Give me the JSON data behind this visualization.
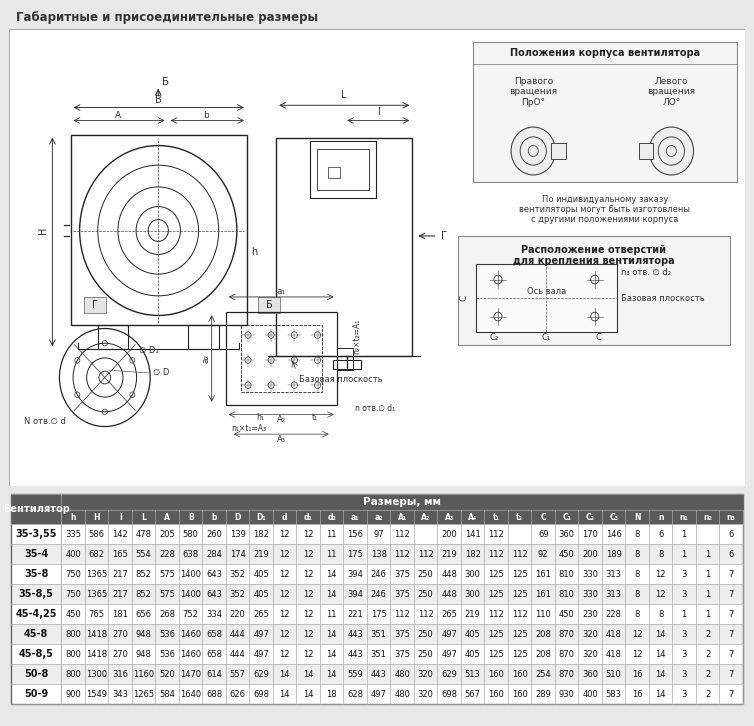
{
  "title": "Габаритные и присоединительные размеры",
  "title_color": "#333333",
  "background_color": "#e8e8e8",
  "drawing_bg": "#ffffff",
  "table_header_bg": "#5a5a5a",
  "table_header_color": "#ffffff",
  "table_row_bg1": "#ffffff",
  "table_row_bg2": "#eeeeee",
  "table_border_color": "#aaaaaa",
  "col_headers": [
    "Вентилятор",
    "h",
    "H",
    "I",
    "L",
    "A",
    "B",
    "b",
    "D",
    "D₁",
    "d",
    "d₁",
    "d₂",
    "a₁",
    "a₂",
    "A₁",
    "A₂",
    "A₃",
    "A₄",
    "t₁",
    "t₂",
    "C",
    "C₁",
    "C₂",
    "C₃",
    "N",
    "n",
    "n₁",
    "n₂",
    "n₃"
  ],
  "rows": [
    [
      "35-3,55",
      "335",
      "586",
      "142",
      "478",
      "205",
      "580",
      "260",
      "139",
      "182",
      "12",
      "12",
      "11",
      "156",
      "97",
      "112",
      "",
      "200",
      "141",
      "112",
      "",
      "69",
      "360",
      "170",
      "146",
      "8",
      "6",
      "1",
      "",
      "6"
    ],
    [
      "35-4",
      "400",
      "682",
      "165",
      "554",
      "228",
      "638",
      "284",
      "174",
      "219",
      "12",
      "12",
      "11",
      "175",
      "138",
      "112",
      "112",
      "219",
      "182",
      "112",
      "112",
      "92",
      "450",
      "200",
      "189",
      "8",
      "8",
      "1",
      "1",
      "6"
    ],
    [
      "35-8",
      "750",
      "1365",
      "217",
      "852",
      "575",
      "1400",
      "643",
      "352",
      "405",
      "12",
      "12",
      "14",
      "394",
      "246",
      "375",
      "250",
      "448",
      "300",
      "125",
      "125",
      "161",
      "810",
      "330",
      "313",
      "8",
      "12",
      "3",
      "1",
      "7"
    ],
    [
      "35-8,5",
      "750",
      "1365",
      "217",
      "852",
      "575",
      "1400",
      "643",
      "352",
      "405",
      "12",
      "12",
      "14",
      "394",
      "246",
      "375",
      "250",
      "448",
      "300",
      "125",
      "125",
      "161",
      "810",
      "330",
      "313",
      "8",
      "12",
      "3",
      "1",
      "7"
    ],
    [
      "45-4,25",
      "450",
      "765",
      "181",
      "656",
      "268",
      "752",
      "334",
      "220",
      "265",
      "12",
      "12",
      "11",
      "221",
      "175",
      "112",
      "112",
      "265",
      "219",
      "112",
      "112",
      "110",
      "450",
      "230",
      "228",
      "8",
      "8",
      "1",
      "1",
      "7"
    ],
    [
      "45-8",
      "800",
      "1418",
      "270",
      "948",
      "536",
      "1460",
      "658",
      "444",
      "497",
      "12",
      "12",
      "14",
      "443",
      "351",
      "375",
      "250",
      "497",
      "405",
      "125",
      "125",
      "208",
      "870",
      "320",
      "418",
      "12",
      "14",
      "3",
      "2",
      "7"
    ],
    [
      "45-8,5",
      "800",
      "1418",
      "270",
      "948",
      "536",
      "1460",
      "658",
      "444",
      "497",
      "12",
      "12",
      "14",
      "443",
      "351",
      "375",
      "250",
      "497",
      "405",
      "125",
      "125",
      "208",
      "870",
      "320",
      "418",
      "12",
      "14",
      "3",
      "2",
      "7"
    ],
    [
      "50-8",
      "800",
      "1300",
      "316",
      "1160",
      "520",
      "1470",
      "614",
      "557",
      "629",
      "14",
      "14",
      "14",
      "559",
      "443",
      "480",
      "320",
      "629",
      "513",
      "160",
      "160",
      "254",
      "870",
      "360",
      "510",
      "16",
      "14",
      "3",
      "2",
      "7"
    ],
    [
      "50-9",
      "900",
      "1549",
      "343",
      "1265",
      "584",
      "1640",
      "688",
      "626",
      "698",
      "14",
      "14",
      "18",
      "628",
      "497",
      "480",
      "320",
      "698",
      "567",
      "160",
      "160",
      "289",
      "930",
      "400",
      "583",
      "16",
      "14",
      "3",
      "2",
      "7"
    ]
  ]
}
